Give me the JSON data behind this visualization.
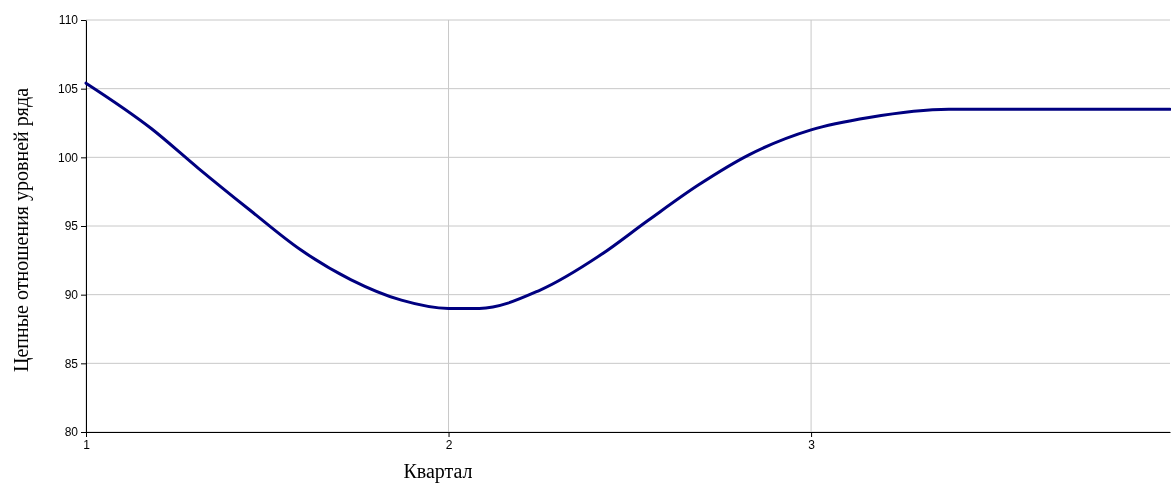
{
  "chart_data": {
    "type": "line",
    "xlabel": "Квартал",
    "ylabel": "Цепные отношения уровней ряда",
    "x": [
      1,
      1.18,
      1.31,
      1.45,
      1.59,
      1.73,
      1.87,
      2.0,
      2.085,
      2.25,
      2.42,
      2.55,
      2.69,
      2.83,
      3.0,
      3.16,
      3.38,
      3.66,
      3.99
    ],
    "series": [
      {
        "color": "#000080",
        "values": [
          105.4,
          102.1,
          99.2,
          96.2,
          93.3,
          91.1,
          89.6,
          89.0,
          89.0,
          90.3,
          92.9,
          95.4,
          98.0,
          100.2,
          102.0,
          102.9,
          103.5,
          103.5,
          103.5
        ]
      }
    ],
    "xlim": [
      1,
      3.99
    ],
    "xticks": [
      1,
      2,
      3
    ],
    "ylim": [
      80,
      110
    ],
    "yticks": [
      80,
      85,
      90,
      95,
      100,
      105,
      110
    ],
    "grid": true,
    "marker": "none",
    "line_style": "solid"
  }
}
